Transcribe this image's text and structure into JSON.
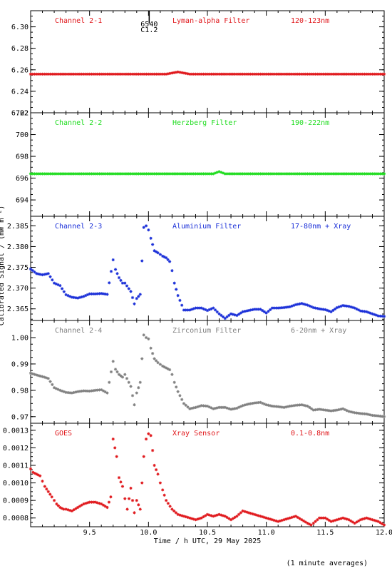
{
  "figure": {
    "xlabel": "Time / h UTC, 29 May 2025",
    "ylabel": "Calibrated Signal / (mW m⁻²)",
    "footnote": "(1 minute averages)",
    "xlim": [
      9.0,
      12.0
    ],
    "xticks": [
      9.5,
      10.0,
      10.5,
      11.0,
      11.5,
      12.0
    ],
    "xtick_labels": [
      "9.5",
      "10.0",
      "10.5",
      "11.0",
      "11.5",
      "12.0"
    ],
    "flare_marker": {
      "x": 10.0,
      "labels": [
        "6540",
        "C1.2"
      ]
    }
  },
  "chart_data": [
    {
      "type": "scatter",
      "name": "Channel 2-1",
      "panel_labels": [
        "Channel 2-1",
        "Lyman-alpha Filter",
        "120-123nm"
      ],
      "color": "#e0181c",
      "ylim": [
        6.22,
        6.315
      ],
      "yticks": [
        6.22,
        6.24,
        6.26,
        6.28,
        6.3
      ],
      "ytick_labels": [
        "6.22",
        "6.24",
        "6.26",
        "6.28",
        "6.30"
      ],
      "x": [
        9.0,
        9.1,
        9.2,
        9.3,
        9.4,
        9.5,
        9.6,
        9.7,
        9.8,
        9.9,
        10.0,
        10.1,
        10.15,
        10.2,
        10.25,
        10.3,
        10.35,
        10.4,
        10.5,
        10.6,
        10.7,
        10.8,
        10.9,
        11.0,
        11.1,
        11.2,
        11.3,
        11.4,
        11.5,
        11.6,
        11.7,
        11.8,
        11.9,
        12.0
      ],
      "y": [
        6.256,
        6.256,
        6.256,
        6.256,
        6.256,
        6.256,
        6.256,
        6.256,
        6.256,
        6.256,
        6.256,
        6.256,
        6.256,
        6.257,
        6.258,
        6.257,
        6.256,
        6.256,
        6.256,
        6.256,
        6.256,
        6.256,
        6.256,
        6.256,
        6.256,
        6.256,
        6.256,
        6.256,
        6.256,
        6.256,
        6.256,
        6.256,
        6.256,
        6.256
      ]
    },
    {
      "type": "scatter",
      "name": "Channel 2-2",
      "panel_labels": [
        "Channel 2-2",
        "Herzberg Filter",
        "190-222nm"
      ],
      "color": "#1fdc1f",
      "ylim": [
        692.5,
        702.0
      ],
      "yticks": [
        694,
        696,
        698,
        700,
        702
      ],
      "ytick_labels": [
        "694",
        "696",
        "698",
        "700",
        "702"
      ],
      "x": [
        9.0,
        9.1,
        9.2,
        9.3,
        9.4,
        9.5,
        9.6,
        9.7,
        9.8,
        9.9,
        10.0,
        10.1,
        10.2,
        10.3,
        10.4,
        10.5,
        10.55,
        10.6,
        10.65,
        10.7,
        10.8,
        10.9,
        11.0,
        11.1,
        11.2,
        11.3,
        11.4,
        11.5,
        11.6,
        11.7,
        11.8,
        11.9,
        12.0
      ],
      "y": [
        696.4,
        696.4,
        696.4,
        696.4,
        696.4,
        696.4,
        696.4,
        696.4,
        696.4,
        696.4,
        696.4,
        696.4,
        696.4,
        696.4,
        696.4,
        696.4,
        696.4,
        696.6,
        696.4,
        696.4,
        696.4,
        696.4,
        696.4,
        696.4,
        696.4,
        696.4,
        696.4,
        696.4,
        696.4,
        696.4,
        696.4,
        696.4,
        696.4
      ]
    },
    {
      "type": "scatter",
      "name": "Channel 2-3",
      "panel_labels": [
        "Channel 2-3",
        "Aluminium Filter",
        "17-80nm + Xray"
      ],
      "color": "#1a2fd8",
      "ylim": [
        2.3622,
        2.3873
      ],
      "yticks": [
        2.365,
        2.37,
        2.375,
        2.38,
        2.385
      ],
      "ytick_labels": [
        "2.365",
        "2.370",
        "2.375",
        "2.380",
        "2.385"
      ],
      "x": [
        9.0,
        9.05,
        9.1,
        9.15,
        9.2,
        9.25,
        9.3,
        9.35,
        9.4,
        9.45,
        9.5,
        9.55,
        9.6,
        9.65,
        9.7,
        9.72,
        9.75,
        9.78,
        9.8,
        9.85,
        9.88,
        9.9,
        9.93,
        9.96,
        9.98,
        10.0,
        10.02,
        10.05,
        10.08,
        10.12,
        10.15,
        10.18,
        10.2,
        10.22,
        10.25,
        10.3,
        10.35,
        10.4,
        10.45,
        10.5,
        10.55,
        10.6,
        10.65,
        10.7,
        10.75,
        10.8,
        10.85,
        10.9,
        10.95,
        11.0,
        11.05,
        11.1,
        11.15,
        11.2,
        11.25,
        11.3,
        11.35,
        11.4,
        11.45,
        11.5,
        11.55,
        11.6,
        11.65,
        11.7,
        11.75,
        11.8,
        11.85,
        11.9,
        11.95,
        12.0
      ],
      "y": [
        2.3746,
        2.3735,
        2.3732,
        2.3735,
        2.3712,
        2.3706,
        2.3684,
        2.3678,
        2.3676,
        2.368,
        2.3686,
        2.3686,
        2.3687,
        2.3685,
        2.3768,
        2.3745,
        2.3725,
        2.3712,
        2.3712,
        2.3692,
        2.3662,
        2.3675,
        2.3685,
        2.3846,
        2.385,
        2.384,
        2.382,
        2.379,
        2.3785,
        2.3777,
        2.3773,
        2.3764,
        2.3742,
        2.3712,
        2.3682,
        2.3647,
        2.3647,
        2.3652,
        2.3652,
        2.3646,
        2.3652,
        2.3638,
        2.3627,
        2.3638,
        2.3634,
        2.3643,
        2.3646,
        2.3649,
        2.3649,
        2.364,
        2.3652,
        2.3652,
        2.3653,
        2.3655,
        2.366,
        2.3663,
        2.3659,
        2.3653,
        2.365,
        2.3648,
        2.3643,
        2.3653,
        2.3658,
        2.3656,
        2.3652,
        2.3645,
        2.3643,
        2.3638,
        2.3633,
        2.3632
      ]
    },
    {
      "type": "scatter",
      "name": "Channel 2-4",
      "panel_labels": [
        "Channel 2-4",
        "Zirconium Filter",
        "6-20nm + Xray"
      ],
      "color": "#808080",
      "ylim": [
        0.9675,
        1.0065
      ],
      "yticks": [
        0.97,
        0.98,
        0.99,
        1.0
      ],
      "ytick_labels": [
        "0.97",
        "0.98",
        "0.99",
        "1.00"
      ],
      "x": [
        9.0,
        9.05,
        9.1,
        9.15,
        9.2,
        9.25,
        9.3,
        9.35,
        9.4,
        9.45,
        9.5,
        9.55,
        9.6,
        9.65,
        9.7,
        9.72,
        9.75,
        9.78,
        9.8,
        9.85,
        9.88,
        9.9,
        9.93,
        9.96,
        9.98,
        10.0,
        10.02,
        10.05,
        10.08,
        10.12,
        10.15,
        10.18,
        10.2,
        10.22,
        10.25,
        10.3,
        10.35,
        10.4,
        10.45,
        10.5,
        10.55,
        10.6,
        10.65,
        10.7,
        10.75,
        10.8,
        10.85,
        10.9,
        10.95,
        11.0,
        11.05,
        11.1,
        11.15,
        11.2,
        11.25,
        11.3,
        11.35,
        11.4,
        11.45,
        11.5,
        11.55,
        11.6,
        11.65,
        11.7,
        11.75,
        11.8,
        11.85,
        11.9,
        11.95,
        12.0
      ],
      "y": [
        0.9865,
        0.9858,
        0.9852,
        0.9845,
        0.981,
        0.98,
        0.9792,
        0.979,
        0.9795,
        0.9798,
        0.9797,
        0.98,
        0.9802,
        0.979,
        0.991,
        0.988,
        0.986,
        0.985,
        0.986,
        0.9815,
        0.9745,
        0.979,
        0.983,
        1.001,
        1.0,
        0.9995,
        0.996,
        0.992,
        0.9905,
        0.9892,
        0.9885,
        0.9878,
        0.986,
        0.983,
        0.9795,
        0.975,
        0.973,
        0.9735,
        0.9742,
        0.974,
        0.973,
        0.9735,
        0.9735,
        0.9728,
        0.9732,
        0.9742,
        0.9748,
        0.9752,
        0.9754,
        0.9745,
        0.974,
        0.9738,
        0.9735,
        0.974,
        0.9743,
        0.9745,
        0.974,
        0.9725,
        0.9728,
        0.9725,
        0.9722,
        0.9725,
        0.973,
        0.972,
        0.9715,
        0.9712,
        0.971,
        0.9705,
        0.9703,
        0.97
      ]
    },
    {
      "type": "scatter",
      "name": "GOES",
      "panel_labels": [
        "GOES",
        "Xray Sensor",
        "0.1-0.8nm"
      ],
      "color": "#e0181c",
      "ylim": [
        0.00075,
        0.00134
      ],
      "yticks": [
        0.0008,
        0.0009,
        0.001,
        0.0011,
        0.0012,
        0.0013
      ],
      "ytick_labels": [
        "0.0008",
        "0.0009",
        "0.0010",
        "0.0011",
        "0.0012",
        "0.0013"
      ],
      "x": [
        9.0,
        9.02,
        9.05,
        9.08,
        9.1,
        9.12,
        9.15,
        9.18,
        9.2,
        9.22,
        9.25,
        9.28,
        9.3,
        9.35,
        9.4,
        9.45,
        9.5,
        9.55,
        9.6,
        9.65,
        9.68,
        9.7,
        9.73,
        9.75,
        9.78,
        9.8,
        9.82,
        9.85,
        9.88,
        9.9,
        9.93,
        9.96,
        9.98,
        10.0,
        10.02,
        10.05,
        10.08,
        10.1,
        10.12,
        10.15,
        10.2,
        10.25,
        10.3,
        10.35,
        10.4,
        10.45,
        10.5,
        10.55,
        10.6,
        10.65,
        10.7,
        10.75,
        10.8,
        10.85,
        10.9,
        10.95,
        11.0,
        11.05,
        11.1,
        11.15,
        11.2,
        11.25,
        11.3,
        11.35,
        11.38,
        11.4,
        11.45,
        11.5,
        11.55,
        11.6,
        11.65,
        11.7,
        11.75,
        11.8,
        11.85,
        11.9,
        11.95,
        12.0
      ],
      "y": [
        0.00108,
        0.00106,
        0.00105,
        0.00104,
        0.00101,
        0.00098,
        0.00095,
        0.00092,
        0.0009,
        0.00088,
        0.00086,
        0.00085,
        0.00085,
        0.00084,
        0.00086,
        0.00088,
        0.00089,
        0.00089,
        0.00088,
        0.00086,
        0.00092,
        0.00125,
        0.00115,
        0.00103,
        0.00098,
        0.00091,
        0.00085,
        0.00097,
        0.00083,
        0.0009,
        0.00085,
        0.00115,
        0.00125,
        0.00128,
        0.00127,
        0.0011,
        0.00105,
        0.001,
        0.00096,
        0.0009,
        0.00085,
        0.00082,
        0.00081,
        0.0008,
        0.00079,
        0.0008,
        0.00082,
        0.00081,
        0.00082,
        0.00081,
        0.00079,
        0.00081,
        0.00084,
        0.00083,
        0.00082,
        0.00081,
        0.0008,
        0.00079,
        0.00078,
        0.00079,
        0.0008,
        0.00081,
        0.00079,
        0.00077,
        0.00076,
        0.00077,
        0.0008,
        0.0008,
        0.00078,
        0.00079,
        0.0008,
        0.00079,
        0.00077,
        0.00079,
        0.0008,
        0.00079,
        0.00078,
        0.00076
      ]
    }
  ]
}
